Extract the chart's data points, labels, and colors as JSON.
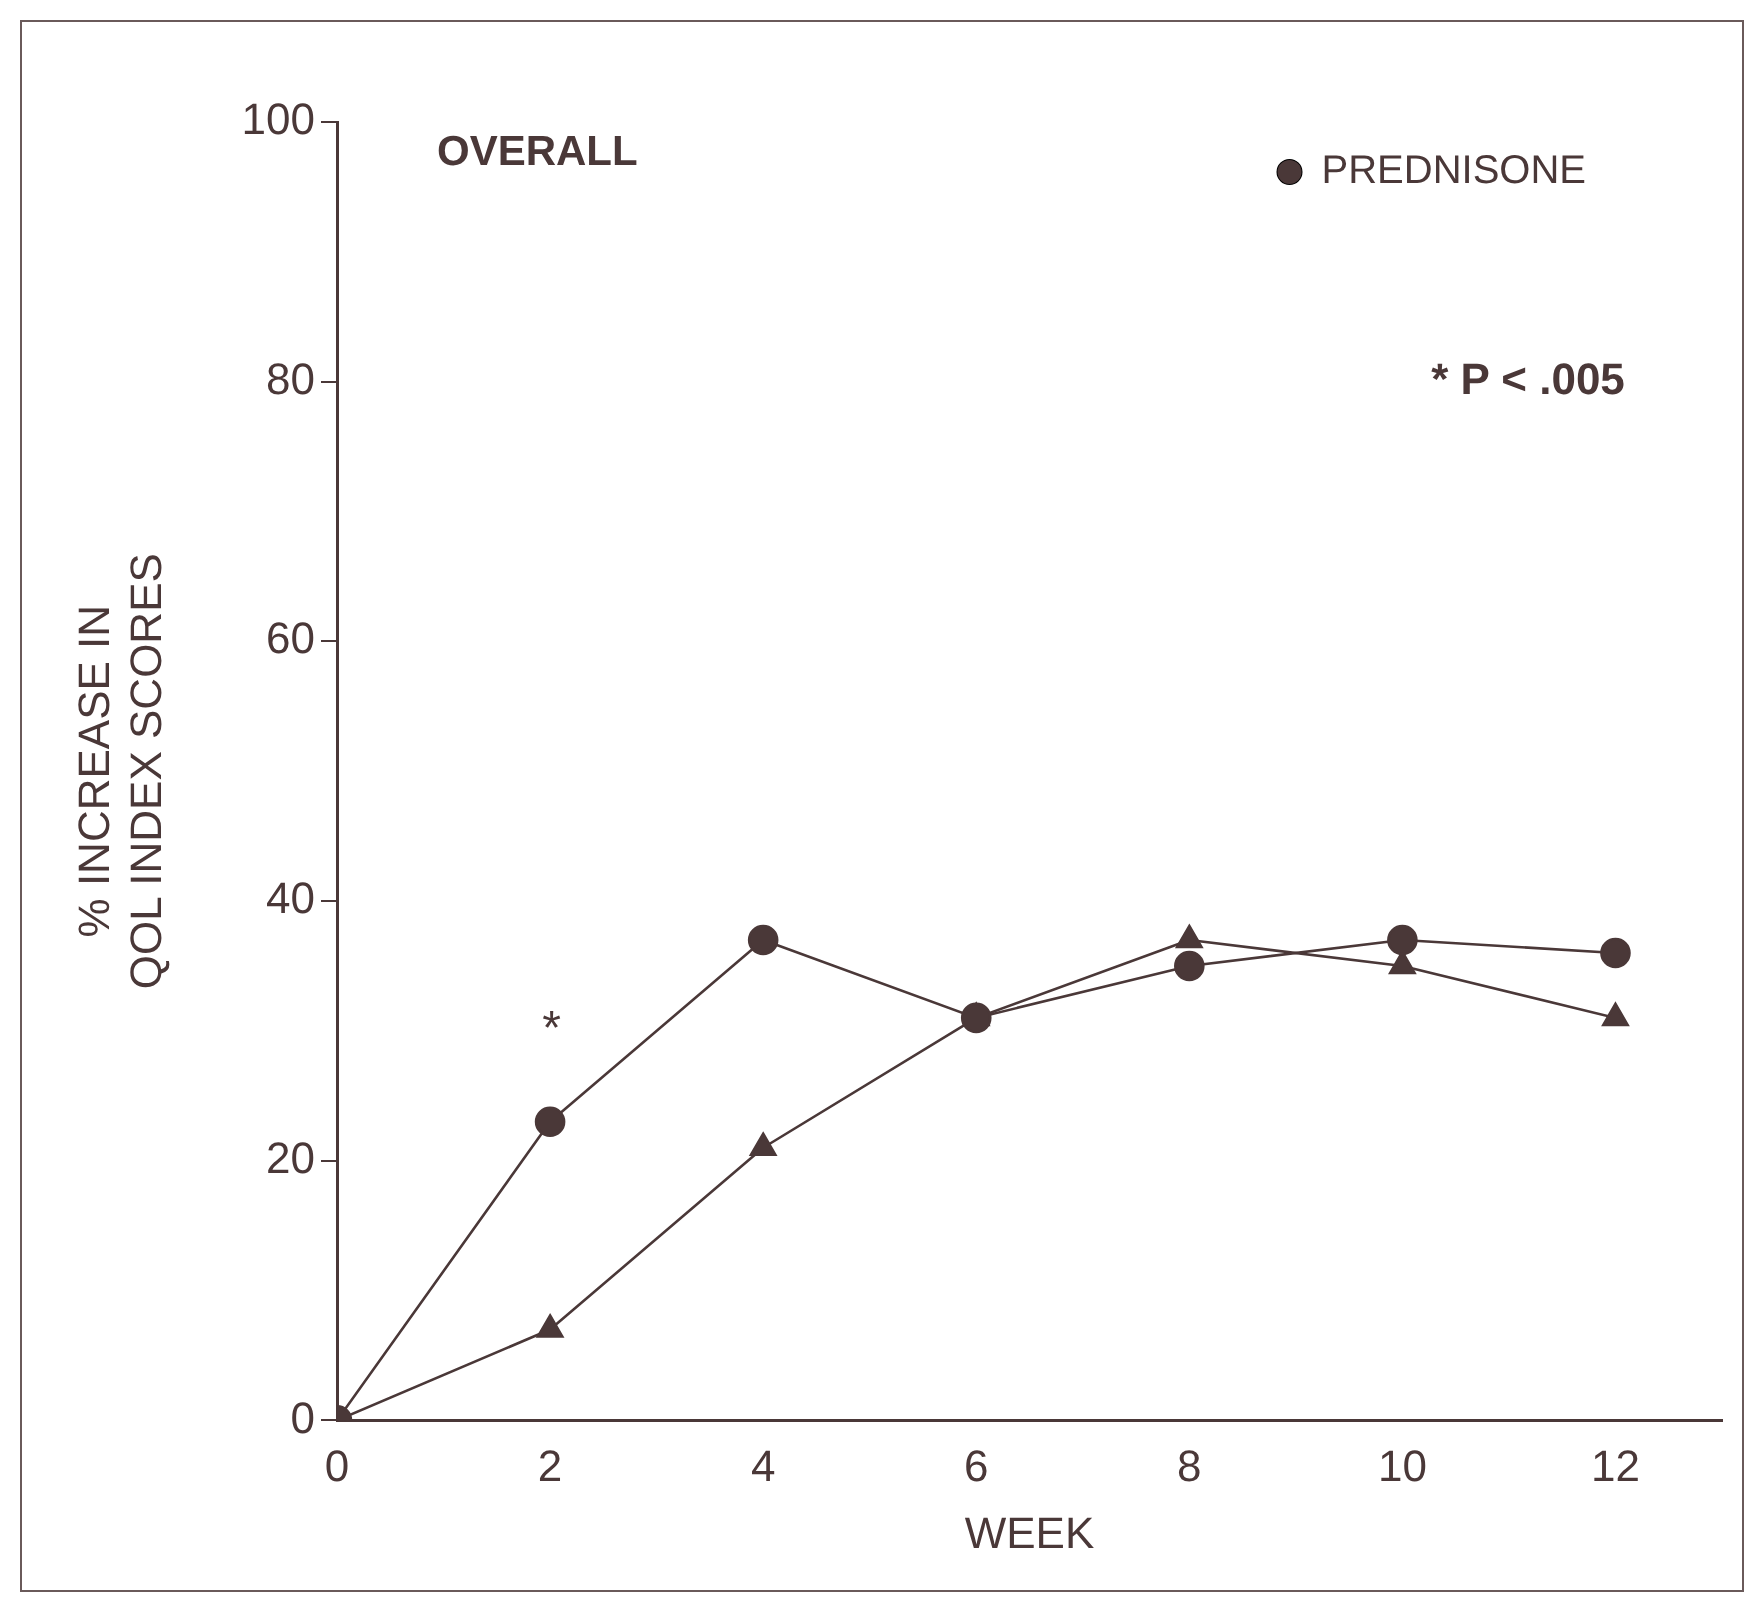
{
  "chart_data": {
    "type": "line",
    "title": "OVERALL",
    "xlabel": "WEEK",
    "ylabel": "% INCREASE IN\nQOL INDEX SCORES",
    "x": [
      0,
      2,
      4,
      6,
      8,
      10,
      12
    ],
    "series": [
      {
        "name": "PREDNISONE",
        "color": "#4a3838",
        "marker": "circle",
        "values": [
          0,
          23,
          37,
          31,
          35,
          37,
          36
        ]
      },
      {
        "color": "#4a3838",
        "marker": "triangle",
        "values": [
          0,
          7,
          21,
          31,
          37,
          35,
          31
        ]
      }
    ],
    "xlim": [
      0,
      13
    ],
    "xticks": [
      0,
      2,
      4,
      6,
      8,
      10,
      12
    ],
    "ylim": [
      0,
      100
    ],
    "yticks": [
      0,
      20,
      40,
      60,
      80,
      100
    ],
    "grid": false,
    "legend": "top right",
    "annotations": [
      "*",
      "* P < .005"
    ]
  }
}
